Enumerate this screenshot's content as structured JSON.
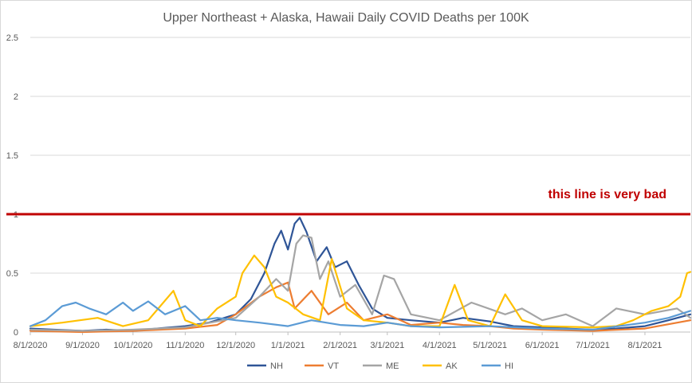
{
  "chart_data": {
    "type": "line",
    "title": "Upper Northeast + Alaska, Hawaii Daily COVID Deaths per 100K",
    "xlabel": "",
    "ylabel": "",
    "x_range": [
      "2020-08-01",
      "2021-08-28"
    ],
    "ylim": [
      0,
      2.5
    ],
    "y_ticks": [
      0,
      0.5,
      1,
      1.5,
      2,
      2.5
    ],
    "y_tick_labels": [
      "0",
      "0.5",
      "1",
      "1.5",
      "2",
      "2.5"
    ],
    "x_ticks": [
      "2020-08-01",
      "2020-09-01",
      "2020-10-01",
      "2020-11-01",
      "2020-12-01",
      "2021-01-01",
      "2021-02-01",
      "2021-03-01",
      "2021-04-01",
      "2021-05-01",
      "2021-06-01",
      "2021-07-01",
      "2021-08-01"
    ],
    "x_tick_labels": [
      "8/1/2020",
      "9/1/2020",
      "10/1/2020",
      "11/1/2020",
      "12/1/2020",
      "1/1/2021",
      "2/1/2021",
      "3/1/2021",
      "4/1/2021",
      "5/1/2021",
      "6/1/2021",
      "7/1/2021",
      "8/1/2021"
    ],
    "grid": true,
    "legend_position": "bottom",
    "reference_line": {
      "y": 1,
      "color": "#c00000",
      "label": "this line is very bad"
    },
    "series": [
      {
        "name": "NH",
        "color": "#2f5597",
        "points": [
          [
            "2020-08-01",
            0.03
          ],
          [
            "2020-08-15",
            0.02
          ],
          [
            "2020-09-01",
            0.01
          ],
          [
            "2020-09-15",
            0.02
          ],
          [
            "2020-10-01",
            0.01
          ],
          [
            "2020-10-15",
            0.03
          ],
          [
            "2020-11-01",
            0.05
          ],
          [
            "2020-11-15",
            0.08
          ],
          [
            "2020-12-01",
            0.15
          ],
          [
            "2020-12-10",
            0.28
          ],
          [
            "2020-12-18",
            0.5
          ],
          [
            "2020-12-24",
            0.75
          ],
          [
            "2020-12-28",
            0.86
          ],
          [
            "2021-01-01",
            0.7
          ],
          [
            "2021-01-05",
            0.92
          ],
          [
            "2021-01-08",
            0.97
          ],
          [
            "2021-01-12",
            0.85
          ],
          [
            "2021-01-18",
            0.6
          ],
          [
            "2021-01-24",
            0.72
          ],
          [
            "2021-01-29",
            0.55
          ],
          [
            "2021-02-05",
            0.6
          ],
          [
            "2021-02-12",
            0.4
          ],
          [
            "2021-02-20",
            0.2
          ],
          [
            "2021-03-01",
            0.12
          ],
          [
            "2021-03-15",
            0.1
          ],
          [
            "2021-04-01",
            0.08
          ],
          [
            "2021-04-15",
            0.12
          ],
          [
            "2021-05-01",
            0.09
          ],
          [
            "2021-05-15",
            0.05
          ],
          [
            "2021-06-01",
            0.04
          ],
          [
            "2021-06-15",
            0.03
          ],
          [
            "2021-07-01",
            0.02
          ],
          [
            "2021-07-15",
            0.03
          ],
          [
            "2021-08-01",
            0.05
          ],
          [
            "2021-08-15",
            0.1
          ],
          [
            "2021-08-28",
            0.15
          ]
        ]
      },
      {
        "name": "VT",
        "color": "#ed7d31",
        "points": [
          [
            "2020-08-01",
            0.01
          ],
          [
            "2020-09-01",
            0.0
          ],
          [
            "2020-10-01",
            0.01
          ],
          [
            "2020-11-01",
            0.03
          ],
          [
            "2020-11-20",
            0.06
          ],
          [
            "2020-12-01",
            0.15
          ],
          [
            "2020-12-15",
            0.3
          ],
          [
            "2020-12-25",
            0.38
          ],
          [
            "2021-01-01",
            0.42
          ],
          [
            "2021-01-05",
            0.2
          ],
          [
            "2021-01-15",
            0.35
          ],
          [
            "2021-01-25",
            0.15
          ],
          [
            "2021-02-05",
            0.25
          ],
          [
            "2021-02-15",
            0.1
          ],
          [
            "2021-03-01",
            0.15
          ],
          [
            "2021-03-15",
            0.06
          ],
          [
            "2021-04-01",
            0.08
          ],
          [
            "2021-04-15",
            0.06
          ],
          [
            "2021-05-01",
            0.05
          ],
          [
            "2021-05-15",
            0.03
          ],
          [
            "2021-06-01",
            0.02
          ],
          [
            "2021-07-01",
            0.01
          ],
          [
            "2021-08-01",
            0.03
          ],
          [
            "2021-08-28",
            0.1
          ]
        ]
      },
      {
        "name": "ME",
        "color": "#a5a5a5",
        "points": [
          [
            "2020-08-01",
            0.02
          ],
          [
            "2020-09-01",
            0.01
          ],
          [
            "2020-10-01",
            0.02
          ],
          [
            "2020-11-01",
            0.04
          ],
          [
            "2020-12-01",
            0.12
          ],
          [
            "2020-12-15",
            0.3
          ],
          [
            "2020-12-25",
            0.45
          ],
          [
            "2021-01-01",
            0.35
          ],
          [
            "2021-01-06",
            0.75
          ],
          [
            "2021-01-10",
            0.82
          ],
          [
            "2021-01-15",
            0.8
          ],
          [
            "2021-01-20",
            0.45
          ],
          [
            "2021-01-25",
            0.6
          ],
          [
            "2021-02-01",
            0.3
          ],
          [
            "2021-02-10",
            0.4
          ],
          [
            "2021-02-20",
            0.15
          ],
          [
            "2021-02-27",
            0.48
          ],
          [
            "2021-03-05",
            0.45
          ],
          [
            "2021-03-15",
            0.15
          ],
          [
            "2021-04-01",
            0.1
          ],
          [
            "2021-04-20",
            0.25
          ],
          [
            "2021-05-10",
            0.15
          ],
          [
            "2021-05-20",
            0.2
          ],
          [
            "2021-06-01",
            0.1
          ],
          [
            "2021-06-15",
            0.15
          ],
          [
            "2021-07-01",
            0.05
          ],
          [
            "2021-07-15",
            0.2
          ],
          [
            "2021-08-01",
            0.15
          ],
          [
            "2021-08-20",
            0.2
          ],
          [
            "2021-08-28",
            0.12
          ]
        ]
      },
      {
        "name": "AK",
        "color": "#ffc000",
        "points": [
          [
            "2020-08-01",
            0.05
          ],
          [
            "2020-08-20",
            0.08
          ],
          [
            "2020-09-10",
            0.12
          ],
          [
            "2020-09-25",
            0.05
          ],
          [
            "2020-10-10",
            0.1
          ],
          [
            "2020-10-25",
            0.35
          ],
          [
            "2020-11-01",
            0.1
          ],
          [
            "2020-11-10",
            0.05
          ],
          [
            "2020-11-20",
            0.2
          ],
          [
            "2020-12-01",
            0.3
          ],
          [
            "2020-12-05",
            0.5
          ],
          [
            "2020-12-12",
            0.65
          ],
          [
            "2020-12-18",
            0.55
          ],
          [
            "2020-12-25",
            0.3
          ],
          [
            "2021-01-01",
            0.25
          ],
          [
            "2021-01-10",
            0.15
          ],
          [
            "2021-01-20",
            0.1
          ],
          [
            "2021-01-27",
            0.62
          ],
          [
            "2021-02-05",
            0.2
          ],
          [
            "2021-02-15",
            0.1
          ],
          [
            "2021-03-01",
            0.08
          ],
          [
            "2021-03-15",
            0.05
          ],
          [
            "2021-04-01",
            0.05
          ],
          [
            "2021-04-10",
            0.4
          ],
          [
            "2021-04-18",
            0.1
          ],
          [
            "2021-05-01",
            0.05
          ],
          [
            "2021-05-10",
            0.32
          ],
          [
            "2021-05-20",
            0.1
          ],
          [
            "2021-06-01",
            0.05
          ],
          [
            "2021-07-01",
            0.04
          ],
          [
            "2021-07-15",
            0.05
          ],
          [
            "2021-07-25",
            0.1
          ],
          [
            "2021-08-05",
            0.18
          ],
          [
            "2021-08-15",
            0.22
          ],
          [
            "2021-08-22",
            0.3
          ],
          [
            "2021-08-26",
            0.5
          ],
          [
            "2021-08-28",
            0.51
          ]
        ]
      },
      {
        "name": "HI",
        "color": "#5b9bd5",
        "points": [
          [
            "2020-08-01",
            0.05
          ],
          [
            "2020-08-10",
            0.1
          ],
          [
            "2020-08-20",
            0.22
          ],
          [
            "2020-08-28",
            0.25
          ],
          [
            "2020-09-05",
            0.2
          ],
          [
            "2020-09-15",
            0.15
          ],
          [
            "2020-09-25",
            0.25
          ],
          [
            "2020-10-01",
            0.18
          ],
          [
            "2020-10-10",
            0.26
          ],
          [
            "2020-10-20",
            0.15
          ],
          [
            "2020-11-01",
            0.22
          ],
          [
            "2020-11-10",
            0.1
          ],
          [
            "2020-11-20",
            0.12
          ],
          [
            "2020-12-01",
            0.1
          ],
          [
            "2020-12-15",
            0.08
          ],
          [
            "2021-01-01",
            0.05
          ],
          [
            "2021-01-15",
            0.1
          ],
          [
            "2021-02-01",
            0.06
          ],
          [
            "2021-02-15",
            0.05
          ],
          [
            "2021-03-01",
            0.08
          ],
          [
            "2021-03-15",
            0.05
          ],
          [
            "2021-04-01",
            0.04
          ],
          [
            "2021-05-01",
            0.05
          ],
          [
            "2021-06-01",
            0.03
          ],
          [
            "2021-07-01",
            0.02
          ],
          [
            "2021-08-01",
            0.08
          ],
          [
            "2021-08-15",
            0.12
          ],
          [
            "2021-08-28",
            0.18
          ]
        ]
      }
    ]
  }
}
